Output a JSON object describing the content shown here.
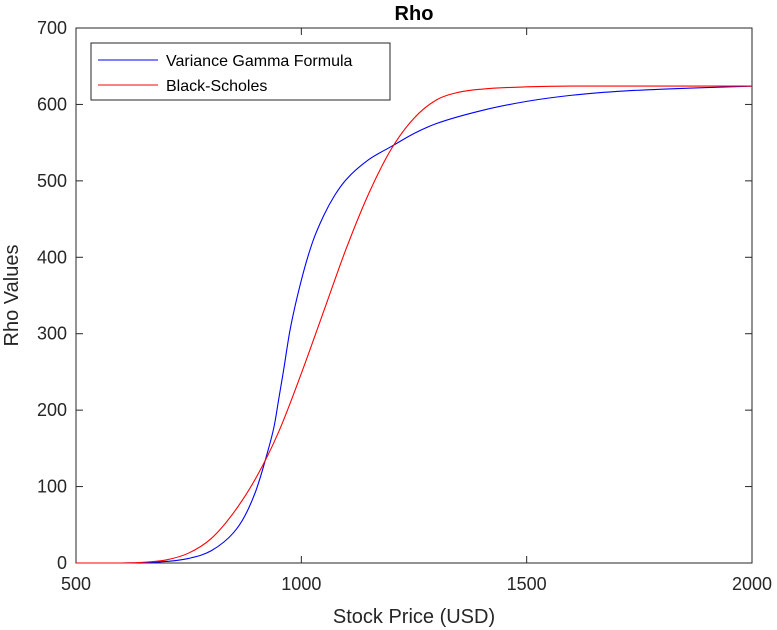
{
  "chart_data": {
    "type": "line",
    "title": "Rho",
    "xlabel": "Stock Price (USD)",
    "ylabel": "Rho Values",
    "xlim": [
      500,
      2000
    ],
    "ylim": [
      0,
      700
    ],
    "xticks": [
      500,
      1000,
      1500,
      2000
    ],
    "yticks": [
      0,
      100,
      200,
      300,
      400,
      500,
      600,
      700
    ],
    "grid": false,
    "legend_position": "top-left",
    "series": [
      {
        "name": "Variance Gamma Formula",
        "color": "#0000ff",
        "x": [
          500,
          600,
          650,
          700,
          750,
          800,
          850,
          875,
          900,
          925,
          940,
          950,
          960,
          975,
          1000,
          1025,
          1050,
          1075,
          1100,
          1150,
          1200,
          1250,
          1300,
          1400,
          1500,
          1600,
          1700,
          1800,
          1900,
          2000
        ],
        "y": [
          0,
          0,
          0.5,
          2,
          6,
          16,
          40,
          62,
          96,
          145,
          180,
          215,
          250,
          305,
          370,
          420,
          455,
          482,
          502,
          528,
          545,
          562,
          575,
          592,
          604,
          612,
          617,
          620,
          622,
          624
        ]
      },
      {
        "name": "Black-Scholes",
        "color": "#ff0000",
        "x": [
          500,
          600,
          650,
          700,
          750,
          800,
          850,
          900,
          950,
          1000,
          1050,
          1100,
          1150,
          1200,
          1250,
          1300,
          1350,
          1400,
          1500,
          1600,
          1700,
          1800,
          1900,
          2000
        ],
        "y": [
          0,
          0,
          1,
          4,
          13,
          32,
          66,
          112,
          172,
          248,
          330,
          412,
          484,
          542,
          582,
          606,
          616,
          620,
          623,
          624,
          624,
          624,
          624,
          624
        ]
      }
    ]
  }
}
